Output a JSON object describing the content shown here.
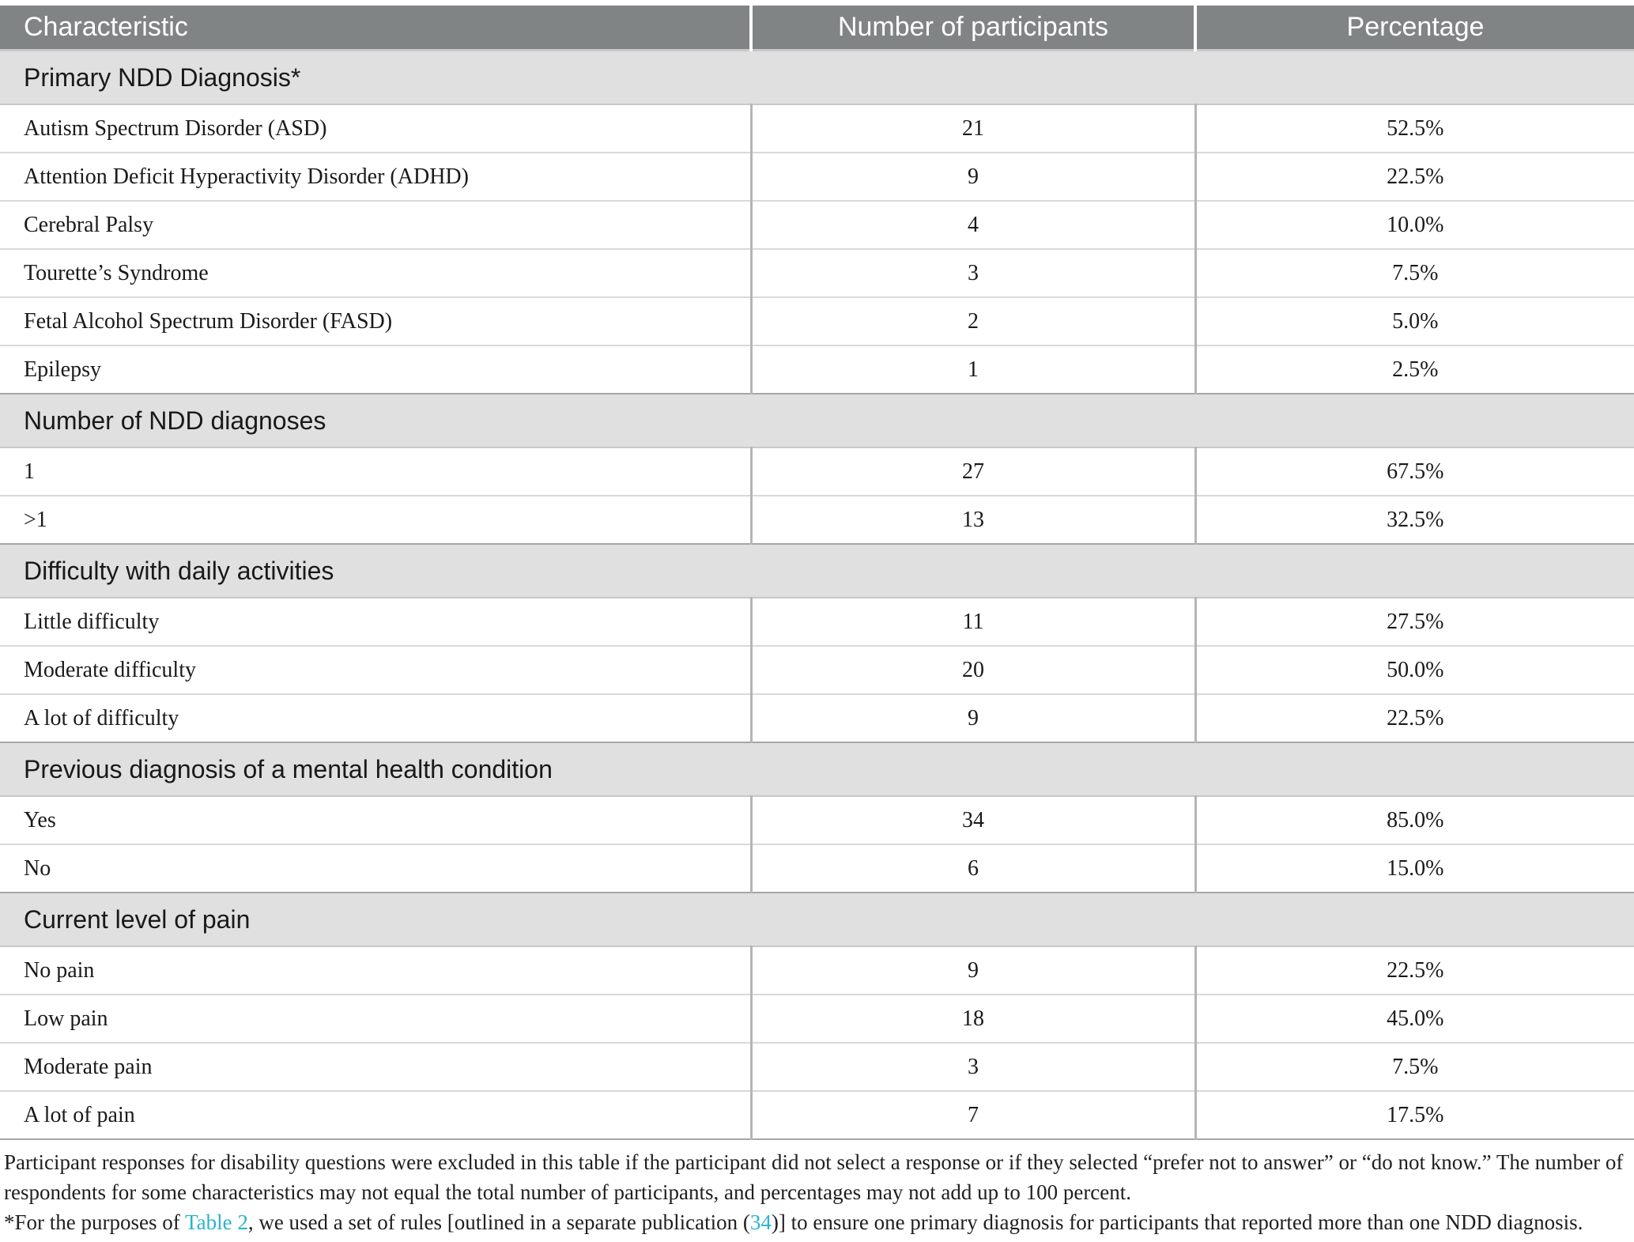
{
  "colors": {
    "header_bg": "#818484",
    "header_text": "#ffffff",
    "section_bg": "#e0e0e0",
    "link_teal": "#2ab3cf"
  },
  "table": {
    "columns": [
      "Characteristic",
      "Number of participants",
      "Percentage"
    ],
    "sections": [
      {
        "title": "Primary NDD Diagnosis*",
        "rows": [
          {
            "label": "Autism Spectrum Disorder (ASD)",
            "participants": "21",
            "percentage": "52.5%"
          },
          {
            "label": "Attention Deficit Hyperactivity Disorder (ADHD)",
            "participants": "9",
            "percentage": "22.5%"
          },
          {
            "label": "Cerebral Palsy",
            "participants": "4",
            "percentage": "10.0%"
          },
          {
            "label": "Tourette’s Syndrome",
            "participants": "3",
            "percentage": "7.5%"
          },
          {
            "label": "Fetal Alcohol Spectrum Disorder (FASD)",
            "participants": "2",
            "percentage": "5.0%"
          },
          {
            "label": "Epilepsy",
            "participants": "1",
            "percentage": "2.5%"
          }
        ]
      },
      {
        "title": "Number of NDD diagnoses",
        "rows": [
          {
            "label": "1",
            "participants": "27",
            "percentage": "67.5%"
          },
          {
            "label": ">1",
            "participants": "13",
            "percentage": "32.5%"
          }
        ]
      },
      {
        "title": "Difficulty with daily activities",
        "rows": [
          {
            "label": "Little difficulty",
            "participants": "11",
            "percentage": "27.5%"
          },
          {
            "label": "Moderate difficulty",
            "participants": "20",
            "percentage": "50.0%"
          },
          {
            "label": "A lot of difficulty",
            "participants": "9",
            "percentage": "22.5%"
          }
        ]
      },
      {
        "title": "Previous diagnosis of a mental health condition",
        "rows": [
          {
            "label": "Yes",
            "participants": "34",
            "percentage": "85.0%"
          },
          {
            "label": "No",
            "participants": "6",
            "percentage": "15.0%"
          }
        ]
      },
      {
        "title": "Current level of pain",
        "rows": [
          {
            "label": "No pain",
            "participants": "9",
            "percentage": "22.5%"
          },
          {
            "label": "Low pain",
            "participants": "18",
            "percentage": "45.0%"
          },
          {
            "label": "Moderate pain",
            "participants": "3",
            "percentage": "7.5%"
          },
          {
            "label": "A lot of pain",
            "participants": "7",
            "percentage": "17.5%"
          }
        ]
      }
    ]
  },
  "footnotes": {
    "general": "Participant responses for disability questions were excluded in this table if the participant did not select a response or if they selected “prefer not to answer” or “do not know.” The number of respondents for some characteristics may not equal the total number of participants, and percentages may not add up to 100 percent.",
    "asterisk": {
      "pre": "*For the purposes of ",
      "table_link": "Table 2",
      "mid": ", we used a set of rules [outlined in a separate publication (",
      "ref_link": "34",
      "post": ")] to ensure one primary diagnosis for participants that reported more than one NDD diagnosis."
    }
  }
}
